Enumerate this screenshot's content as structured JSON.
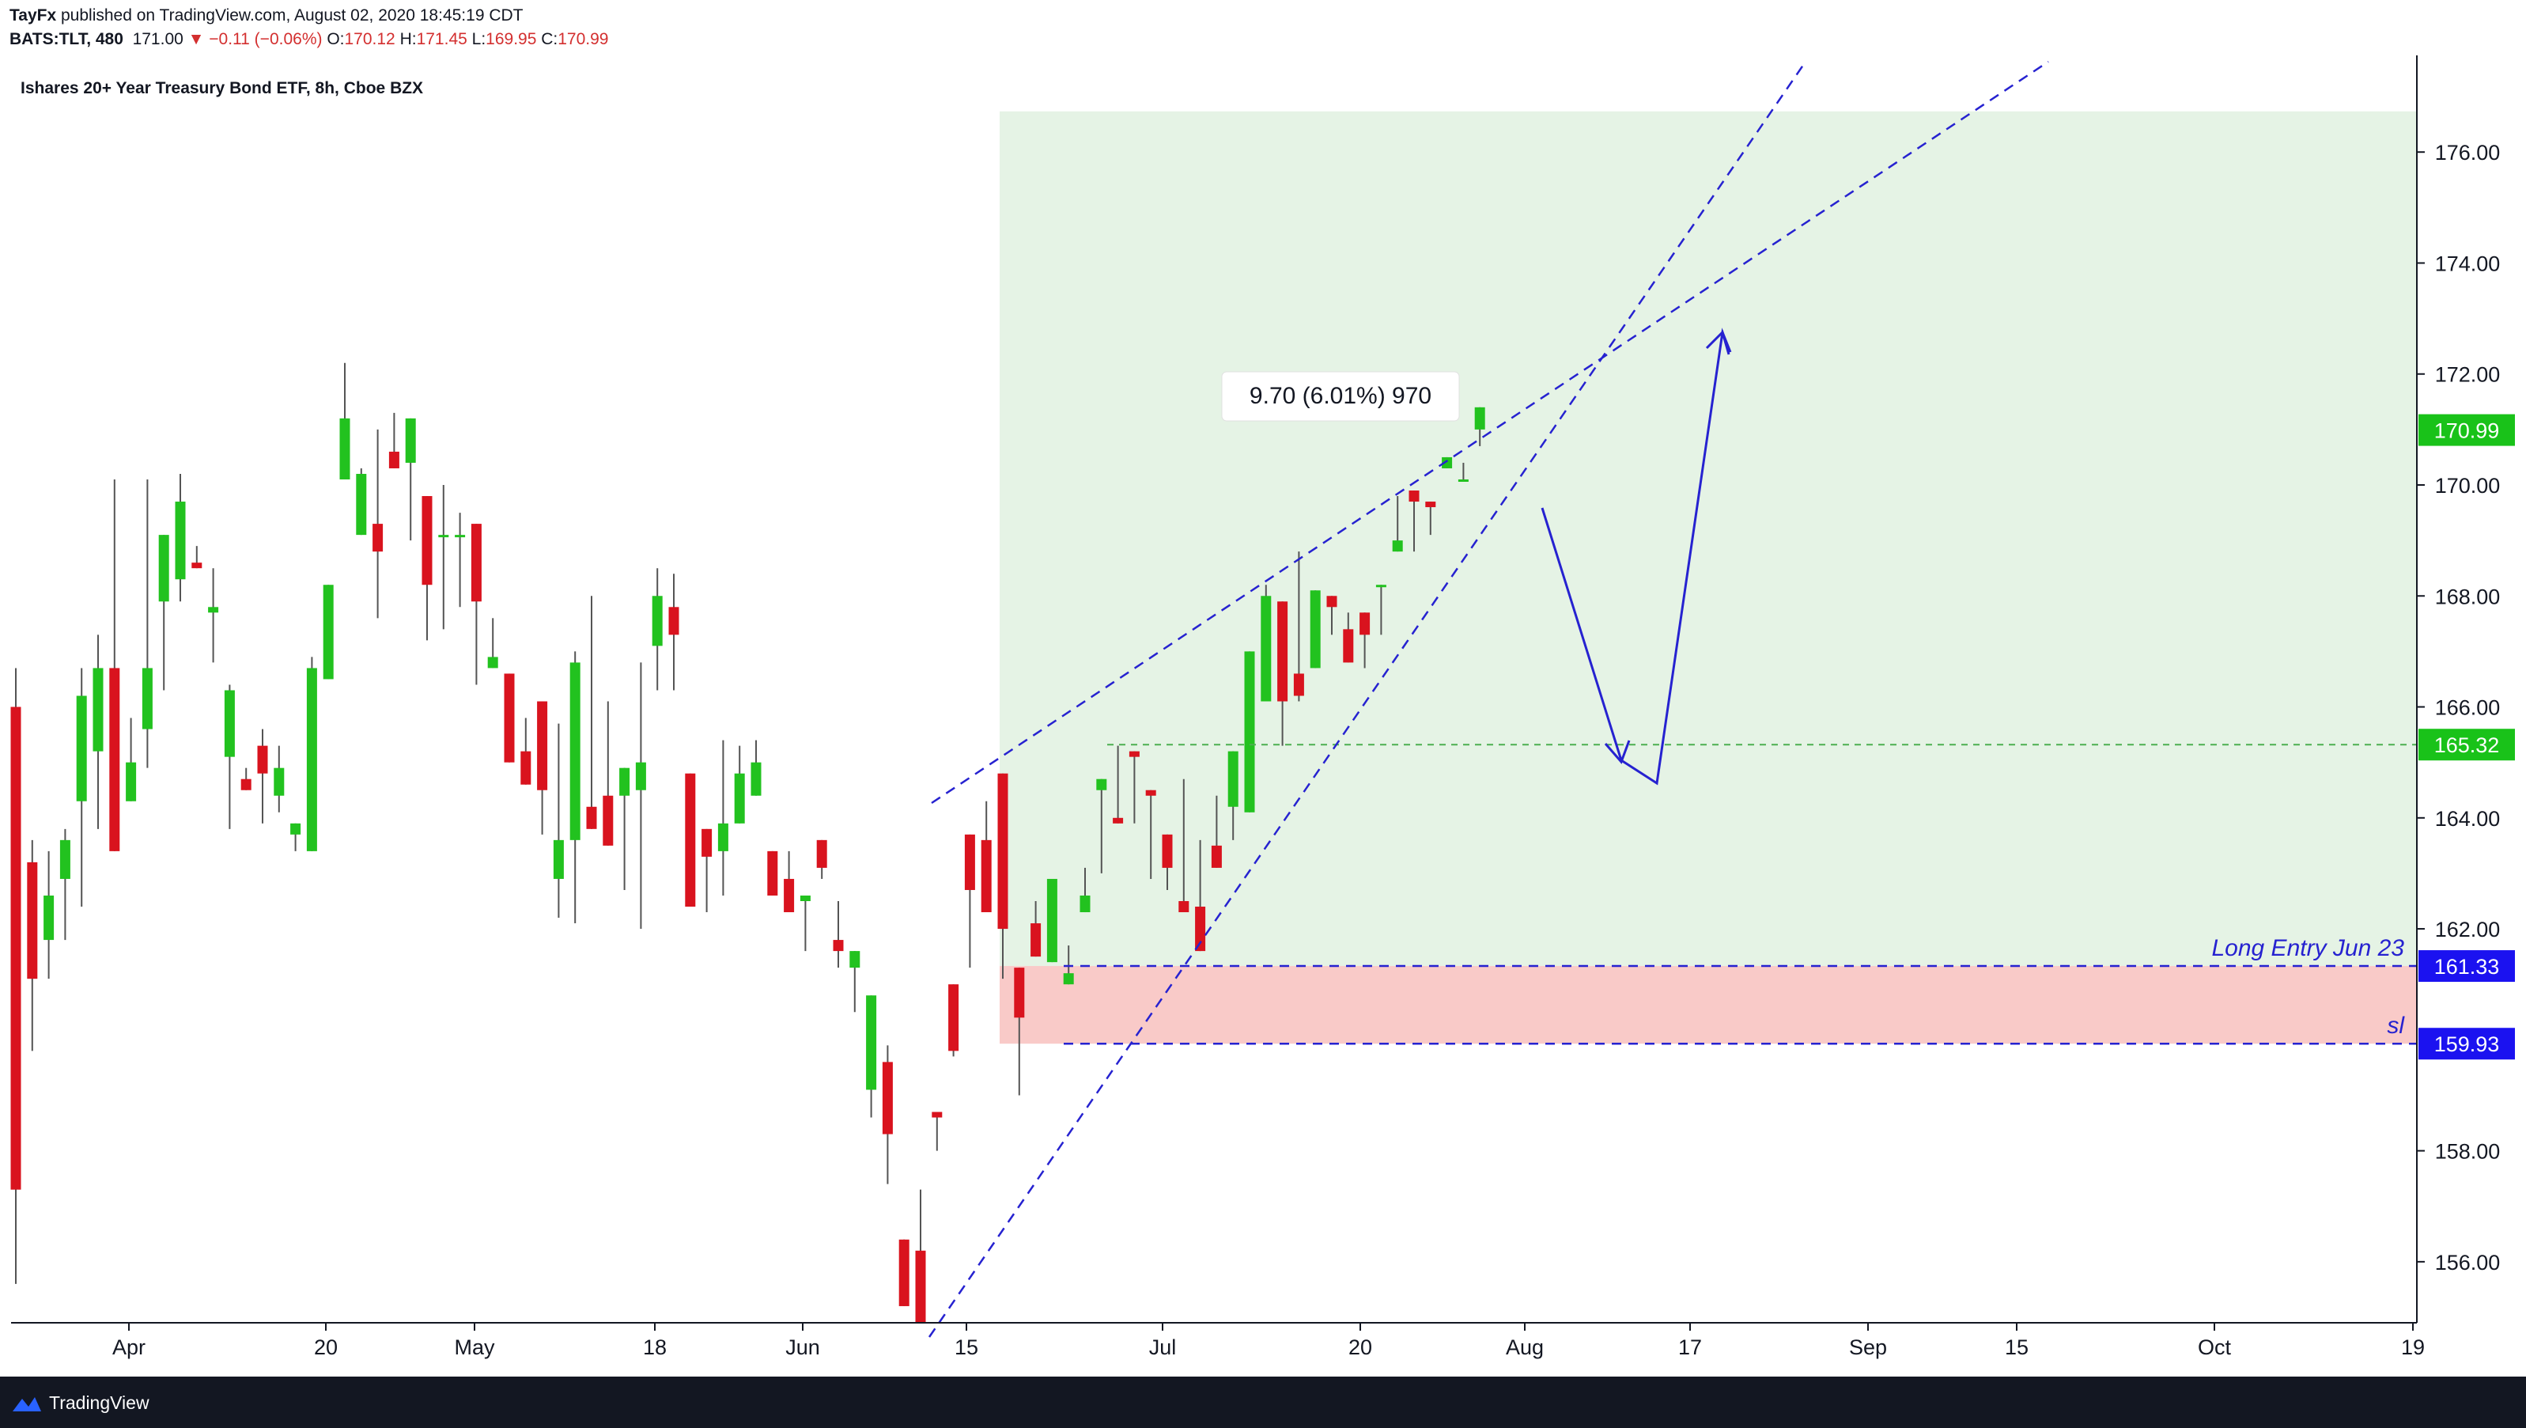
{
  "header": {
    "publisher": "TayFx",
    "published_text": "published on TradingView.com, August 02, 2020 18:45:19 CDT",
    "symbol": "BATS:TLT, 480",
    "last": "171.00",
    "change": "▼ −0.11 (−0.06%)",
    "o_label": "O:",
    "o_value": "170.12",
    "h_label": "H:",
    "h_value": "171.45",
    "l_label": "L:",
    "l_value": "169.95",
    "c_label": "C:",
    "c_value": "170.99"
  },
  "footer": {
    "brand": "TradingView"
  },
  "colors": {
    "up": "#22c21f",
    "down": "#d9131e",
    "wick": "#545454",
    "target_zone": "#e5f3e5",
    "stop_zone": "#f9cac8",
    "trendline": "#2622d0",
    "green_line": "#4caf50",
    "price_green": "#19c219",
    "price_blue": "#1b12f0"
  },
  "chart_data": {
    "type": "candlestick",
    "title": "Ishares 20+ Year Treasury Bond ETF, 8h, Cboe BZX",
    "y_ticks": [
      "176.00",
      "174.00",
      "172.00",
      "170.00",
      "168.00",
      "166.00",
      "164.00",
      "162.00",
      "158.00",
      "156.00"
    ],
    "ylim": [
      154.9,
      177.6
    ],
    "x_ticks": [
      "Apr",
      "20",
      "May",
      "18",
      "Jun",
      "15",
      "Jul",
      "20",
      "Aug",
      "17",
      "Sep",
      "15",
      "Oct",
      "19"
    ],
    "price_labels": [
      {
        "value": 170.99,
        "text": "170.99",
        "color": "green"
      },
      {
        "value": 165.32,
        "text": "165.32",
        "color": "green"
      },
      {
        "value": 161.33,
        "text": "161.33",
        "color": "blue"
      },
      {
        "value": 159.93,
        "text": "159.93",
        "color": "blue"
      }
    ],
    "position": {
      "type": "long",
      "entry": 161.33,
      "stop": 159.93,
      "target": 171.03,
      "measure_label": "9.70 (6.01%) 970",
      "entry_label": "Long Entry Jun 23",
      "stop_label": "sl",
      "target_level_line": 165.32
    },
    "candles": [
      [
        166.0,
        166.7,
        155.6,
        157.3
      ],
      [
        163.2,
        163.6,
        159.8,
        161.1
      ],
      [
        161.8,
        163.4,
        161.1,
        162.6
      ],
      [
        162.9,
        163.8,
        161.8,
        163.6
      ],
      [
        164.3,
        166.7,
        162.4,
        166.2
      ],
      [
        165.2,
        167.3,
        163.8,
        166.7
      ],
      [
        166.7,
        170.1,
        165.3,
        163.4
      ],
      [
        164.3,
        165.8,
        164.8,
        165.0
      ],
      [
        165.6,
        170.1,
        164.9,
        166.7
      ],
      [
        167.9,
        168.6,
        166.3,
        169.1
      ],
      [
        168.3,
        170.2,
        167.9,
        169.7
      ],
      [
        168.6,
        168.9,
        168.8,
        168.5
      ],
      [
        167.7,
        168.5,
        166.8,
        167.8
      ],
      [
        165.1,
        166.4,
        163.8,
        166.3
      ],
      [
        164.7,
        164.6,
        164.9,
        164.5
      ],
      [
        165.3,
        165.6,
        163.9,
        164.8
      ],
      [
        164.4,
        165.3,
        164.1,
        164.9
      ],
      [
        163.7,
        163.9,
        163.4,
        163.9
      ],
      [
        163.4,
        166.9,
        166.5,
        166.7
      ],
      [
        166.5,
        166.8,
        166.6,
        168.2
      ],
      [
        170.1,
        172.2,
        170.9,
        171.2
      ],
      [
        169.1,
        170.3,
        169.3,
        170.2
      ],
      [
        169.3,
        171.0,
        167.6,
        168.8
      ],
      [
        170.6,
        170.7,
        171.3,
        170.3
      ],
      [
        170.4,
        171.0,
        169.0,
        171.2
      ],
      [
        169.8,
        169.2,
        167.2,
        168.2
      ],
      [
        169.1,
        170.0,
        167.4,
        169.1
      ],
      [
        169.1,
        169.5,
        167.8,
        169.1
      ],
      [
        169.3,
        167.6,
        166.4,
        167.9
      ],
      [
        166.7,
        167.6,
        166.8,
        166.9
      ],
      [
        166.6,
        166.6,
        165.2,
        165.0
      ],
      [
        165.2,
        165.8,
        164.8,
        164.6
      ],
      [
        166.1,
        164.6,
        163.7,
        164.5
      ],
      [
        162.9,
        165.7,
        162.2,
        163.6
      ],
      [
        163.6,
        167.0,
        162.1,
        166.8
      ],
      [
        164.2,
        168.0,
        163.8,
        163.8
      ],
      [
        164.4,
        166.1,
        165.5,
        163.5
      ],
      [
        164.4,
        163.3,
        162.7,
        164.9
      ],
      [
        164.5,
        166.8,
        162.0,
        165.0
      ],
      [
        167.1,
        168.5,
        166.3,
        168.0
      ],
      [
        167.8,
        168.4,
        166.3,
        167.3
      ],
      [
        164.8,
        164.3,
        163.2,
        162.4
      ],
      [
        163.8,
        162.9,
        162.3,
        163.3
      ],
      [
        163.4,
        165.4,
        162.6,
        163.9
      ],
      [
        163.9,
        165.3,
        164.1,
        164.8
      ],
      [
        164.4,
        165.4,
        164.4,
        165.0
      ],
      [
        163.4,
        163.2,
        163.0,
        162.6
      ],
      [
        162.9,
        163.4,
        162.3,
        162.3
      ],
      [
        162.5,
        161.6,
        161.7,
        162.6
      ],
      [
        163.6,
        163.2,
        162.9,
        163.1
      ],
      [
        161.8,
        162.5,
        161.3,
        161.6
      ],
      [
        161.3,
        160.5,
        160.5,
        161.6
      ],
      [
        159.1,
        158.6,
        159.1,
        160.8
      ],
      [
        159.6,
        159.9,
        157.4,
        158.3
      ],
      [
        156.4,
        156.1,
        156.1,
        155.2
      ],
      [
        156.2,
        157.3,
        156.3,
        154.9
      ],
      [
        158.7,
        158.3,
        158.0,
        158.6
      ],
      [
        161.0,
        160.9,
        159.7,
        159.8
      ],
      [
        163.7,
        162.4,
        161.3,
        162.7
      ],
      [
        163.6,
        164.3,
        162.4,
        162.3
      ],
      [
        164.8,
        161.9,
        161.1,
        162.0
      ],
      [
        161.3,
        159.9,
        159.0,
        160.4
      ],
      [
        162.1,
        162.5,
        162.5,
        161.5
      ],
      [
        161.4,
        162.6,
        161.4,
        162.9
      ],
      [
        161.0,
        161.7,
        161.0,
        161.2
      ],
      [
        162.3,
        163.1,
        163.0,
        162.6
      ],
      [
        164.5,
        164.4,
        163.0,
        164.7
      ],
      [
        164.0,
        165.3,
        164.2,
        163.9
      ],
      [
        165.2,
        164.1,
        163.9,
        165.1
      ],
      [
        164.5,
        162.9,
        163.8,
        164.4
      ],
      [
        163.7,
        162.7,
        163.1,
        163.1
      ],
      [
        162.5,
        164.7,
        162.4,
        162.3
      ],
      [
        162.4,
        163.6,
        162.3,
        161.6
      ],
      [
        163.5,
        163.5,
        164.4,
        163.1
      ],
      [
        164.2,
        163.6,
        164.0,
        165.2
      ],
      [
        164.1,
        165.8,
        166.3,
        167.0
      ],
      [
        166.1,
        168.2,
        167.1,
        168.0
      ],
      [
        167.9,
        165.4,
        165.3,
        166.1
      ],
      [
        166.6,
        168.8,
        166.1,
        166.2
      ],
      [
        166.7,
        167.8,
        167.0,
        168.1
      ],
      [
        168.0,
        167.7,
        167.3,
        167.8
      ],
      [
        167.4,
        167.7,
        167.5,
        166.8
      ],
      [
        167.7,
        167.4,
        166.7,
        167.3
      ],
      [
        168.2,
        167.3,
        167.8,
        168.2
      ],
      [
        168.8,
        169.8,
        169.3,
        169.0
      ],
      [
        169.9,
        169.1,
        168.8,
        169.7
      ],
      [
        169.7,
        169.1,
        169.7,
        169.6
      ],
      [
        170.3,
        170.3,
        170.3,
        170.5
      ],
      [
        170.1,
        170.2,
        170.4,
        170.1
      ],
      [
        171.0,
        171.2,
        170.7,
        171.4
      ]
    ]
  }
}
